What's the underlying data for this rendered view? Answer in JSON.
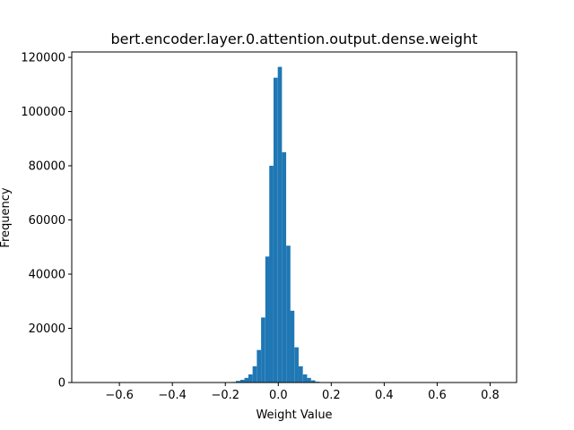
{
  "chart_data": {
    "type": "bar",
    "title": "bert.encoder.layer.0.attention.output.dense.weight",
    "xlabel": "Weight Value",
    "ylabel": "Frequency",
    "xlim": [
      -0.78,
      0.9
    ],
    "ylim": [
      0,
      122000
    ],
    "x_ticks": [
      -0.6,
      -0.4,
      -0.2,
      0.0,
      0.2,
      0.4,
      0.6,
      0.8
    ],
    "x_tick_labels": [
      "−0.6",
      "−0.4",
      "−0.2",
      "0.0",
      "0.2",
      "0.4",
      "0.6",
      "0.8"
    ],
    "y_ticks": [
      0,
      20000,
      40000,
      60000,
      80000,
      100000,
      120000
    ],
    "y_tick_labels": [
      "0",
      "20000",
      "40000",
      "60000",
      "80000",
      "100000",
      "120000"
    ],
    "bin_width": 0.0158,
    "bins": [
      {
        "x": -0.176,
        "y": 200
      },
      {
        "x": -0.16,
        "y": 600
      },
      {
        "x": -0.144,
        "y": 1000
      },
      {
        "x": -0.128,
        "y": 1700
      },
      {
        "x": -0.113,
        "y": 3000
      },
      {
        "x": -0.097,
        "y": 6000
      },
      {
        "x": -0.081,
        "y": 12000
      },
      {
        "x": -0.065,
        "y": 24000
      },
      {
        "x": -0.049,
        "y": 46500
      },
      {
        "x": -0.034,
        "y": 80000
      },
      {
        "x": -0.018,
        "y": 112500
      },
      {
        "x": -0.002,
        "y": 116500
      },
      {
        "x": 0.014,
        "y": 85000
      },
      {
        "x": 0.03,
        "y": 50500
      },
      {
        "x": 0.045,
        "y": 26500
      },
      {
        "x": 0.061,
        "y": 13000
      },
      {
        "x": 0.077,
        "y": 6000
      },
      {
        "x": 0.093,
        "y": 3000
      },
      {
        "x": 0.108,
        "y": 1700
      },
      {
        "x": 0.124,
        "y": 800
      },
      {
        "x": 0.14,
        "y": 300
      }
    ],
    "bar_color": "#1f77b4",
    "grid": false,
    "legend": "none"
  }
}
